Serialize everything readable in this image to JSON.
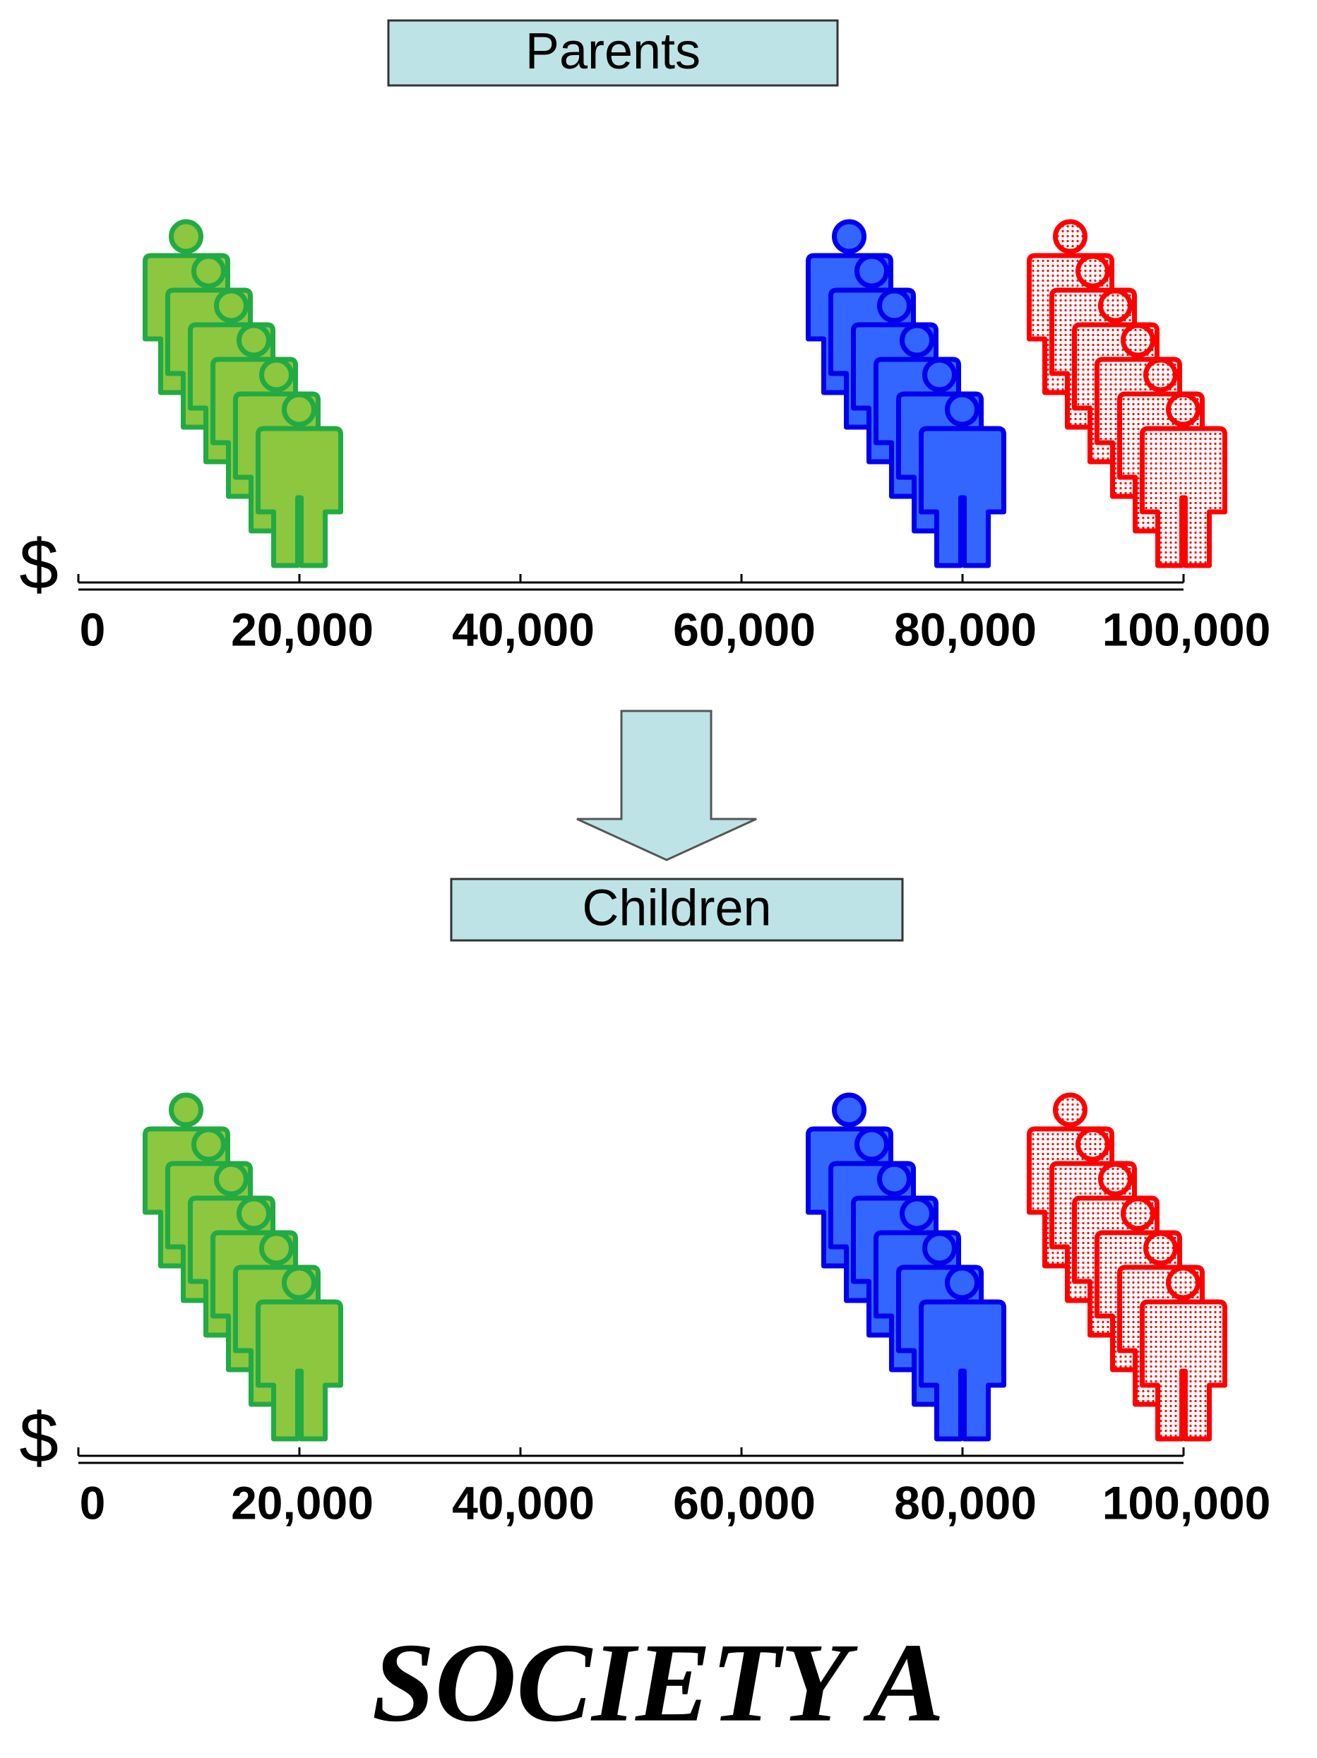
{
  "title": "SOCIETY A",
  "panels": [
    {
      "label": "Parents",
      "currency": "$",
      "axis_ticks": [
        {
          "value": 0,
          "label": "0"
        },
        {
          "value": 20000,
          "label": "20,000"
        },
        {
          "value": 40000,
          "label": "40,000"
        },
        {
          "value": 60000,
          "label": "60,000"
        },
        {
          "value": 80000,
          "label": "80,000"
        },
        {
          "value": 100000,
          "label": "100,000"
        }
      ],
      "groups": [
        {
          "color": "green",
          "count": 6,
          "income": 20000
        },
        {
          "color": "blue",
          "count": 6,
          "income": 80000
        },
        {
          "color": "red",
          "count": 6,
          "income": 100000,
          "pattern": "dots"
        }
      ]
    },
    {
      "label": "Children",
      "currency": "$",
      "axis_ticks": [
        {
          "value": 0,
          "label": "0"
        },
        {
          "value": 20000,
          "label": "20,000"
        },
        {
          "value": 40000,
          "label": "40,000"
        },
        {
          "value": 60000,
          "label": "60,000"
        },
        {
          "value": 80000,
          "label": "80,000"
        },
        {
          "value": 100000,
          "label": "100,000"
        }
      ],
      "groups": [
        {
          "color": "green",
          "count": 6,
          "income": 20000
        },
        {
          "color": "blue",
          "count": 6,
          "income": 80000
        },
        {
          "color": "red",
          "count": 6,
          "income": 100000,
          "pattern": "dots"
        }
      ]
    }
  ]
}
